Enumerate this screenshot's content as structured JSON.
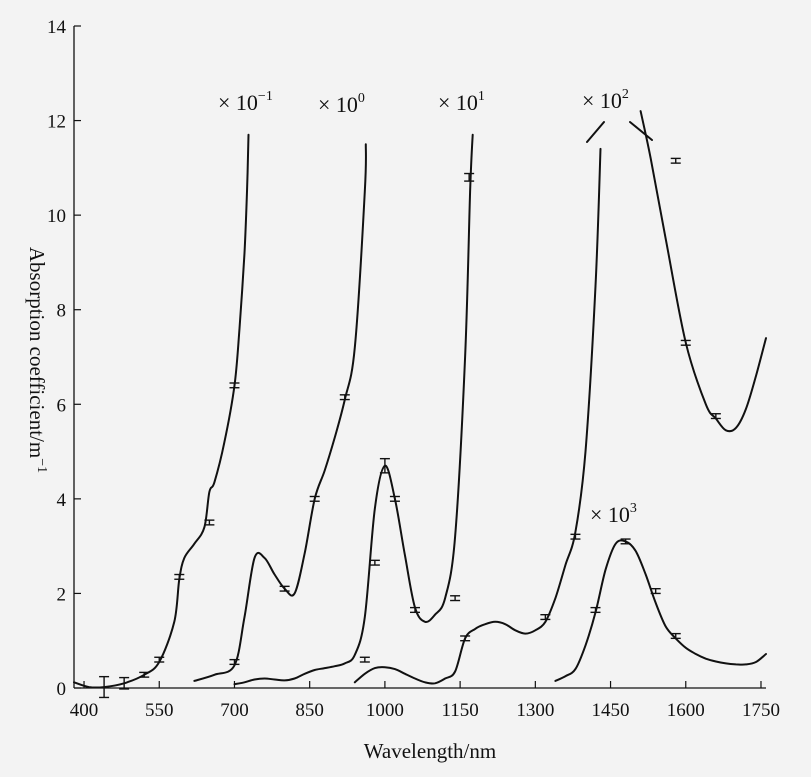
{
  "chart_data": {
    "type": "line",
    "title": "",
    "xlabel": "Wavelength/nm",
    "ylabel": "Absorption coefficient/m",
    "ylabel_sup": "−1",
    "xlim": [
      380,
      1760
    ],
    "ylim": [
      0,
      14
    ],
    "xticks": [
      400,
      550,
      700,
      850,
      1000,
      1150,
      1300,
      1450,
      1600,
      1750
    ],
    "xtick_labels": [
      "400",
      "550",
      "700",
      "850",
      "1000",
      "1150",
      "1300",
      "1450",
      "1600",
      "1750"
    ],
    "yticks": [
      0,
      2,
      4,
      6,
      8,
      10,
      12,
      14
    ],
    "ytick_labels": [
      "0",
      "2",
      "4",
      "6",
      "8",
      "10",
      "12",
      "14"
    ],
    "series": [
      {
        "name": "×10^-1",
        "annotation": {
          "base": "× 10",
          "exp": "−1"
        },
        "x": [
          380,
          410,
          440,
          480,
          520,
          550,
          580,
          590,
          600,
          620,
          640,
          650,
          660,
          680,
          700,
          710,
          720,
          725,
          728
        ],
        "y": [
          0.12,
          0.02,
          0.02,
          0.1,
          0.28,
          0.55,
          1.4,
          2.3,
          2.75,
          3.05,
          3.4,
          4.15,
          4.35,
          5.2,
          6.4,
          7.6,
          9.2,
          10.5,
          11.7
        ]
      },
      {
        "name": "×10^0",
        "annotation": {
          "base": "× 10",
          "exp": "0"
        },
        "x": [
          620,
          660,
          700,
          720,
          740,
          760,
          780,
          800,
          820,
          840,
          860,
          880,
          900,
          920,
          940,
          960,
          962
        ],
        "y": [
          0.15,
          0.28,
          0.48,
          1.5,
          2.75,
          2.75,
          2.4,
          2.1,
          2.0,
          2.85,
          4.0,
          4.6,
          5.3,
          6.1,
          7.2,
          10.5,
          11.5
        ]
      },
      {
        "name": "×10^1",
        "annotation": {
          "base": "× 10",
          "exp": "1"
        },
        "x": [
          700,
          720,
          740,
          760,
          780,
          800,
          820,
          840,
          860,
          880,
          900,
          920,
          940,
          960,
          980,
          1000,
          1020,
          1040,
          1060,
          1080,
          1100,
          1120,
          1140,
          1160,
          1170,
          1175
        ],
        "y": [
          0.08,
          0.12,
          0.18,
          0.2,
          0.18,
          0.16,
          0.2,
          0.3,
          0.38,
          0.42,
          0.46,
          0.52,
          0.7,
          1.5,
          3.8,
          4.7,
          4.0,
          2.8,
          1.7,
          1.4,
          1.55,
          1.9,
          3.2,
          7.0,
          10.5,
          11.7
        ]
      },
      {
        "name": "×10^2",
        "annotation": {
          "base": "× 10",
          "exp": "2"
        },
        "x": [
          940,
          960,
          980,
          1000,
          1020,
          1040,
          1060,
          1080,
          1100,
          1120,
          1140,
          1160,
          1180,
          1200,
          1220,
          1240,
          1260,
          1280,
          1300,
          1320,
          1340,
          1360,
          1380,
          1400,
          1420,
          1430
        ],
        "y": [
          0.12,
          0.3,
          0.42,
          0.44,
          0.4,
          0.3,
          0.2,
          0.12,
          0.1,
          0.2,
          0.35,
          1.05,
          1.25,
          1.35,
          1.4,
          1.35,
          1.22,
          1.15,
          1.22,
          1.4,
          1.9,
          2.6,
          3.3,
          5.0,
          8.5,
          11.4
        ],
        "tail_x": [
          1510,
          1530,
          1560,
          1600,
          1640,
          1660,
          1680,
          1700,
          1720,
          1740,
          1760
        ],
        "tail_y": [
          12.2,
          11.2,
          9.5,
          7.3,
          6.0,
          5.7,
          5.45,
          5.5,
          5.9,
          6.6,
          7.4
        ]
      },
      {
        "name": "×10^3",
        "annotation": {
          "base": "× 10",
          "exp": "3"
        },
        "x": [
          1340,
          1360,
          1380,
          1400,
          1420,
          1440,
          1460,
          1480,
          1500,
          1520,
          1540,
          1560,
          1580,
          1600,
          1620,
          1640,
          1660,
          1680,
          1700,
          1720,
          1740,
          1760
        ],
        "y": [
          0.15,
          0.25,
          0.4,
          0.9,
          1.6,
          2.5,
          3.05,
          3.1,
          2.9,
          2.4,
          1.8,
          1.3,
          1.05,
          0.85,
          0.72,
          0.62,
          0.56,
          0.52,
          0.5,
          0.5,
          0.55,
          0.72
        ]
      }
    ],
    "error_marks": [
      {
        "x": 440,
        "y": 0.02,
        "err": 0.22
      },
      {
        "x": 480,
        "y": 0.1,
        "err": 0.12
      },
      {
        "x": 520,
        "y": 0.28,
        "err": 0.05
      },
      {
        "x": 550,
        "y": 0.6,
        "err": 0.05
      },
      {
        "x": 590,
        "y": 2.35,
        "err": 0.05
      },
      {
        "x": 650,
        "y": 3.5,
        "err": 0.05
      },
      {
        "x": 700,
        "y": 6.4,
        "err": 0.05
      },
      {
        "x": 700,
        "y": 0.55,
        "err": 0.05
      },
      {
        "x": 800,
        "y": 2.1,
        "err": 0.05
      },
      {
        "x": 860,
        "y": 4.0,
        "err": 0.05
      },
      {
        "x": 920,
        "y": 6.15,
        "err": 0.05
      },
      {
        "x": 960,
        "y": 0.6,
        "err": 0.05
      },
      {
        "x": 980,
        "y": 2.65,
        "err": 0.05
      },
      {
        "x": 1000,
        "y": 4.7,
        "err": 0.15
      },
      {
        "x": 1020,
        "y": 4.0,
        "err": 0.05
      },
      {
        "x": 1060,
        "y": 1.65,
        "err": 0.05
      },
      {
        "x": 1140,
        "y": 1.9,
        "err": 0.05
      },
      {
        "x": 1160,
        "y": 1.05,
        "err": 0.05
      },
      {
        "x": 1168,
        "y": 10.8,
        "err": 0.08
      },
      {
        "x": 1320,
        "y": 1.5,
        "err": 0.05
      },
      {
        "x": 1380,
        "y": 3.2,
        "err": 0.05
      },
      {
        "x": 1420,
        "y": 1.65,
        "err": 0.05
      },
      {
        "x": 1480,
        "y": 3.1,
        "err": 0.05
      },
      {
        "x": 1540,
        "y": 2.05,
        "err": 0.05
      },
      {
        "x": 1580,
        "y": 11.15,
        "err": 0.05
      },
      {
        "x": 1600,
        "y": 7.3,
        "err": 0.05
      },
      {
        "x": 1660,
        "y": 5.75,
        "err": 0.05
      },
      {
        "x": 1580,
        "y": 1.1,
        "err": 0.05
      }
    ]
  }
}
